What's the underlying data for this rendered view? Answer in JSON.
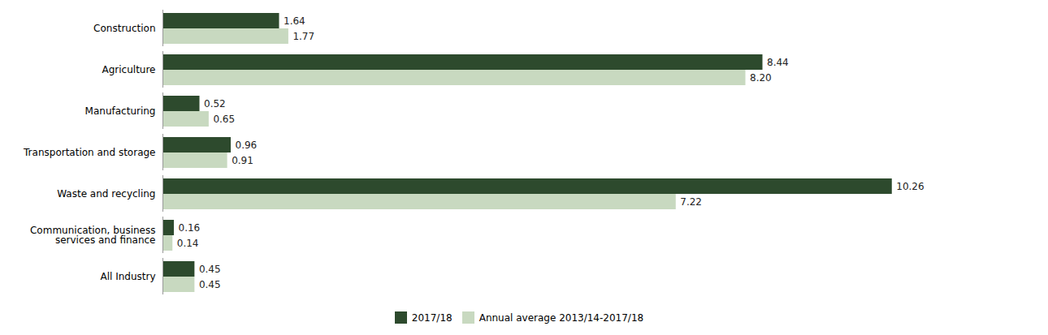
{
  "chart_data": {
    "type": "bar",
    "orientation": "horizontal",
    "categories": [
      "Construction",
      "Agriculture",
      "Manufacturing",
      "Transportation and storage",
      "Waste and recycling",
      "Communication, business\nservices and finance",
      "All Industry"
    ],
    "series": [
      {
        "name": "2017/18",
        "color": "#2d4a2d",
        "values": [
          1.64,
          8.44,
          0.52,
          0.96,
          10.26,
          0.16,
          0.45
        ],
        "value_labels": [
          "1.64",
          "8.44",
          "0.52",
          "0.96",
          "10.26",
          "0.16",
          "0.45"
        ]
      },
      {
        "name": "Annual average 2013/14-2017/18",
        "color": "#c8d9c0",
        "values": [
          1.77,
          8.2,
          0.65,
          0.91,
          7.22,
          0.14,
          0.45
        ],
        "value_labels": [
          "1.77",
          "8.20",
          "0.65",
          "0.91",
          "7.22",
          "0.14",
          "0.45"
        ]
      }
    ],
    "xlim": [
      0,
      12.0
    ],
    "data_labels": true,
    "tick_labels": "y",
    "legend": "bottom"
  }
}
